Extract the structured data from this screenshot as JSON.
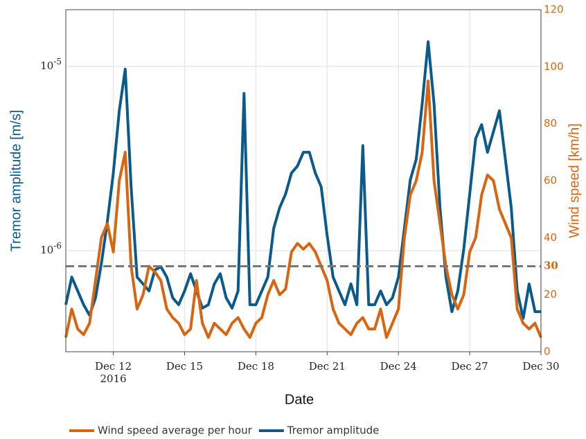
{
  "chart_data": {
    "type": "line",
    "xlabel": "Date",
    "ylabel": "Tremor amplitude [m/s]",
    "y2label": "Wind speed [km/h]",
    "xlim": [
      "2016-12-10",
      "2016-12-30"
    ],
    "xticks": [
      {
        "value": "2016-12-12",
        "label": "Dec 12\n2016"
      },
      {
        "value": "2016-12-15",
        "label": "Dec 15"
      },
      {
        "value": "2016-12-18",
        "label": "Dec 18"
      },
      {
        "value": "2016-12-21",
        "label": "Dec 21"
      },
      {
        "value": "2016-12-24",
        "label": "Dec 24"
      },
      {
        "value": "2016-12-27",
        "label": "Dec 27"
      },
      {
        "value": "2016-12-30",
        "label": "Dec 30"
      }
    ],
    "ylog": true,
    "ylim": [
      2.83e-07,
      2.03e-05
    ],
    "yticks": [
      {
        "value": 1e-06,
        "label": "10-6"
      },
      {
        "value": 1e-05,
        "label": "10-5"
      }
    ],
    "y2lim": [
      0,
      120
    ],
    "y2ticks": [
      0,
      20,
      40,
      60,
      80,
      100,
      120
    ],
    "hline": {
      "value": 30,
      "axis": "y2",
      "color": "#777777"
    },
    "grid": true,
    "legend": "bottom",
    "x": [
      "2016-12-10 00:00",
      "2016-12-10 06:00",
      "2016-12-10 12:00",
      "2016-12-10 18:00",
      "2016-12-11 00:00",
      "2016-12-11 06:00",
      "2016-12-11 12:00",
      "2016-12-11 18:00",
      "2016-12-12 00:00",
      "2016-12-12 06:00",
      "2016-12-12 12:00",
      "2016-12-12 18:00",
      "2016-12-13 00:00",
      "2016-12-13 06:00",
      "2016-12-13 12:00",
      "2016-12-13 18:00",
      "2016-12-14 00:00",
      "2016-12-14 06:00",
      "2016-12-14 12:00",
      "2016-12-14 18:00",
      "2016-12-15 00:00",
      "2016-12-15 06:00",
      "2016-12-15 12:00",
      "2016-12-15 18:00",
      "2016-12-16 00:00",
      "2016-12-16 06:00",
      "2016-12-16 12:00",
      "2016-12-16 18:00",
      "2016-12-17 00:00",
      "2016-12-17 06:00",
      "2016-12-17 12:00",
      "2016-12-17 18:00",
      "2016-12-18 00:00",
      "2016-12-18 06:00",
      "2016-12-18 12:00",
      "2016-12-18 18:00",
      "2016-12-19 00:00",
      "2016-12-19 06:00",
      "2016-12-19 12:00",
      "2016-12-19 18:00",
      "2016-12-20 00:00",
      "2016-12-20 06:00",
      "2016-12-20 12:00",
      "2016-12-20 18:00",
      "2016-12-21 00:00",
      "2016-12-21 06:00",
      "2016-12-21 12:00",
      "2016-12-21 18:00",
      "2016-12-22 00:00",
      "2016-12-22 06:00",
      "2016-12-22 12:00",
      "2016-12-22 18:00",
      "2016-12-23 00:00",
      "2016-12-23 06:00",
      "2016-12-23 12:00",
      "2016-12-23 18:00",
      "2016-12-24 00:00",
      "2016-12-24 06:00",
      "2016-12-24 12:00",
      "2016-12-24 18:00",
      "2016-12-25 00:00",
      "2016-12-25 06:00",
      "2016-12-25 12:00",
      "2016-12-25 18:00",
      "2016-12-26 00:00",
      "2016-12-26 06:00",
      "2016-12-26 12:00",
      "2016-12-26 18:00",
      "2016-12-27 00:00",
      "2016-12-27 06:00",
      "2016-12-27 12:00",
      "2016-12-27 18:00",
      "2016-12-28 00:00",
      "2016-12-28 06:00",
      "2016-12-28 12:00",
      "2016-12-28 18:00",
      "2016-12-29 00:00",
      "2016-12-29 06:00",
      "2016-12-29 12:00",
      "2016-12-29 18:00",
      "2016-12-30 00:00"
    ],
    "series": [
      {
        "name": "Wind speed average per hour",
        "color": "#d8650f",
        "axis": "y2",
        "values": [
          5,
          15,
          8,
          6,
          10,
          25,
          40,
          45,
          35,
          60,
          70,
          30,
          15,
          20,
          30,
          28,
          25,
          15,
          12,
          10,
          6,
          8,
          25,
          10,
          5,
          10,
          8,
          6,
          10,
          12,
          8,
          5,
          10,
          12,
          20,
          25,
          20,
          22,
          35,
          38,
          36,
          38,
          35,
          30,
          25,
          15,
          10,
          8,
          6,
          10,
          12,
          8,
          8,
          15,
          5,
          10,
          15,
          40,
          55,
          60,
          70,
          95,
          60,
          45,
          30,
          20,
          15,
          20,
          35,
          40,
          55,
          62,
          60,
          50,
          45,
          40,
          15,
          10,
          8,
          10,
          5
        ]
      },
      {
        "name": "Tremor amplitude",
        "color": "#0b5a8c",
        "axis": "y",
        "values": [
          5.09e-07,
          7.19e-07,
          6.05e-07,
          5.09e-07,
          4.47e-07,
          5.55e-07,
          8.55e-07,
          1.44e-06,
          2.64e-06,
          5.74e-06,
          9.66e-06,
          2.22e-06,
          7.19e-07,
          6.6e-07,
          6.05e-07,
          7.85e-07,
          8.2e-07,
          7.19e-07,
          5.55e-07,
          5.09e-07,
          6.05e-07,
          7.5e-07,
          6.05e-07,
          4.88e-07,
          5.09e-07,
          6.6e-07,
          7.5e-07,
          5.55e-07,
          4.88e-07,
          6.05e-07,
          7.13e-06,
          5.09e-07,
          5.09e-07,
          6.05e-07,
          7.19e-07,
          1.32e-06,
          1.71e-06,
          2.03e-06,
          2.64e-06,
          2.88e-06,
          3.42e-06,
          3.42e-06,
          2.64e-06,
          2.22e-06,
          1.21e-06,
          7.19e-07,
          6.05e-07,
          5.09e-07,
          6.6e-07,
          5.09e-07,
          3.72e-06,
          5.09e-07,
          5.09e-07,
          6.05e-07,
          5.09e-07,
          5.55e-07,
          7.19e-07,
          1.32e-06,
          2.42e-06,
          3.13e-06,
          6.27e-06,
          1.36e-05,
          6.27e-06,
          1.71e-06,
          7.19e-07,
          4.67e-07,
          6.05e-07,
          1.02e-06,
          2.03e-06,
          4.06e-06,
          4.83e-06,
          3.42e-06,
          4.43e-06,
          5.74e-06,
          3.13e-06,
          1.71e-06,
          6.05e-07,
          4.29e-07,
          6.6e-07,
          4.67e-07,
          4.67e-07
        ]
      }
    ]
  }
}
